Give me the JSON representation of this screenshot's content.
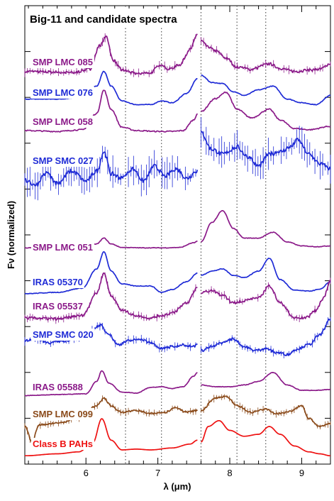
{
  "chart_data": {
    "type": "line",
    "title": "Big-11 and candidate spectra",
    "xlabel": "λ (μm)",
    "ylabel": "Fν (normalized)",
    "xlim": [
      5.15,
      9.4
    ],
    "x_ticks": [
      6,
      7,
      8,
      9
    ],
    "grid": false,
    "reference_lines_um": [
      6.55,
      7.05,
      7.6,
      8.1,
      8.5
    ],
    "gap_um": [
      7.55,
      7.6
    ],
    "colors": {
      "purple": "#8b1a89",
      "blue": "#1f2bd6",
      "brown": "#8a4a1a",
      "red": "#ee1111"
    },
    "series": [
      {
        "name": "SMP LMC 085",
        "color": "purple",
        "noise": 0.35,
        "errbars": true,
        "points": [
          [
            5.15,
            0.15
          ],
          [
            5.5,
            0.14
          ],
          [
            5.8,
            0.12
          ],
          [
            6.05,
            0.2
          ],
          [
            6.2,
            0.75
          ],
          [
            6.28,
            0.95
          ],
          [
            6.38,
            0.4
          ],
          [
            6.5,
            0.18
          ],
          [
            6.7,
            0.1
          ],
          [
            6.9,
            0.12
          ],
          [
            7.0,
            0.25
          ],
          [
            7.05,
            0.32
          ],
          [
            7.15,
            0.2
          ],
          [
            7.3,
            0.3
          ],
          [
            7.45,
            0.65
          ],
          [
            7.55,
            1.0
          ],
          [
            7.6,
            0.85
          ],
          [
            7.7,
            0.7
          ],
          [
            7.8,
            0.62
          ],
          [
            7.95,
            0.45
          ],
          [
            8.1,
            0.25
          ],
          [
            8.3,
            0.2
          ],
          [
            8.55,
            0.32
          ],
          [
            8.7,
            0.22
          ],
          [
            8.9,
            0.15
          ],
          [
            9.1,
            0.18
          ],
          [
            9.25,
            0.2
          ],
          [
            9.4,
            0.3
          ]
        ]
      },
      {
        "name": "SMP LMC 076",
        "color": "blue",
        "noise": 0.1,
        "errbars": false,
        "points": [
          [
            5.15,
            0.2
          ],
          [
            5.6,
            0.2
          ],
          [
            5.95,
            0.25
          ],
          [
            6.15,
            0.55
          ],
          [
            6.25,
            0.95
          ],
          [
            6.35,
            0.55
          ],
          [
            6.5,
            0.15
          ],
          [
            6.7,
            0.05
          ],
          [
            6.9,
            0.05
          ],
          [
            7.05,
            0.15
          ],
          [
            7.2,
            0.1
          ],
          [
            7.4,
            0.35
          ],
          [
            7.55,
            0.75
          ],
          [
            7.6,
            0.85
          ],
          [
            7.75,
            0.65
          ],
          [
            7.9,
            0.62
          ],
          [
            8.05,
            0.4
          ],
          [
            8.2,
            0.3
          ],
          [
            8.4,
            0.45
          ],
          [
            8.6,
            0.55
          ],
          [
            8.8,
            0.2
          ],
          [
            9.0,
            0.1
          ],
          [
            9.2,
            0.05
          ],
          [
            9.4,
            0.3
          ]
        ]
      },
      {
        "name": "SMP LMC 058",
        "color": "purple",
        "noise": 0.15,
        "errbars": false,
        "points": [
          [
            5.15,
            0.1
          ],
          [
            5.6,
            0.08
          ],
          [
            5.95,
            0.12
          ],
          [
            6.15,
            0.5
          ],
          [
            6.25,
            1.05
          ],
          [
            6.35,
            0.6
          ],
          [
            6.5,
            0.18
          ],
          [
            6.7,
            0.1
          ],
          [
            7.0,
            0.08
          ],
          [
            7.2,
            0.08
          ],
          [
            7.35,
            0.1
          ],
          [
            7.5,
            0.35
          ],
          [
            7.55,
            0.5
          ],
          [
            7.6,
            0.55
          ],
          [
            7.8,
            0.85
          ],
          [
            7.95,
            1.0
          ],
          [
            8.1,
            0.6
          ],
          [
            8.3,
            0.4
          ],
          [
            8.55,
            0.6
          ],
          [
            8.7,
            0.35
          ],
          [
            8.9,
            0.15
          ],
          [
            9.1,
            0.12
          ],
          [
            9.4,
            0.2
          ]
        ]
      },
      {
        "name": "SMP SMC 027",
        "color": "blue",
        "noise": 0.5,
        "errbars": true,
        "points": [
          [
            5.15,
            0.3
          ],
          [
            5.3,
            0.2
          ],
          [
            5.45,
            0.45
          ],
          [
            5.6,
            0.25
          ],
          [
            5.8,
            0.5
          ],
          [
            6.0,
            0.3
          ],
          [
            6.15,
            0.5
          ],
          [
            6.25,
            0.9
          ],
          [
            6.35,
            0.45
          ],
          [
            6.5,
            0.35
          ],
          [
            6.65,
            0.55
          ],
          [
            6.8,
            0.3
          ],
          [
            6.95,
            0.6
          ],
          [
            7.1,
            0.4
          ],
          [
            7.25,
            0.55
          ],
          [
            7.4,
            0.35
          ],
          [
            7.55,
            0.5
          ],
          [
            7.6,
            1.3
          ],
          [
            7.75,
            0.95
          ],
          [
            7.9,
            0.85
          ],
          [
            8.1,
            1.0
          ],
          [
            8.25,
            0.8
          ],
          [
            8.4,
            0.6
          ],
          [
            8.55,
            0.85
          ],
          [
            8.7,
            0.9
          ],
          [
            8.85,
            1.0
          ],
          [
            8.95,
            1.15
          ],
          [
            9.1,
            0.85
          ],
          [
            9.25,
            0.65
          ],
          [
            9.4,
            0.55
          ]
        ]
      },
      {
        "name": "SMP LMC 051",
        "color": "purple",
        "noise": 0.08,
        "errbars": false,
        "points": [
          [
            5.15,
            0.05
          ],
          [
            5.6,
            0.05
          ],
          [
            6.0,
            0.06
          ],
          [
            6.15,
            0.15
          ],
          [
            6.25,
            0.3
          ],
          [
            6.35,
            0.15
          ],
          [
            6.5,
            0.06
          ],
          [
            6.8,
            0.05
          ],
          [
            7.1,
            0.05
          ],
          [
            7.3,
            0.06
          ],
          [
            7.5,
            0.18
          ],
          [
            7.55,
            0.22
          ],
          [
            7.6,
            0.2
          ],
          [
            7.75,
            0.7
          ],
          [
            7.9,
            1.0
          ],
          [
            8.05,
            0.55
          ],
          [
            8.2,
            0.3
          ],
          [
            8.4,
            0.3
          ],
          [
            8.6,
            0.45
          ],
          [
            8.8,
            0.2
          ],
          [
            9.0,
            0.1
          ],
          [
            9.2,
            0.08
          ],
          [
            9.4,
            0.1
          ]
        ]
      },
      {
        "name": "IRAS 05370",
        "color": "blue",
        "noise": 0.08,
        "errbars": false,
        "points": [
          [
            5.15,
            0.02
          ],
          [
            5.6,
            0.05
          ],
          [
            5.95,
            0.15
          ],
          [
            6.15,
            0.6
          ],
          [
            6.25,
            1.0
          ],
          [
            6.35,
            0.55
          ],
          [
            6.5,
            0.25
          ],
          [
            6.7,
            0.2
          ],
          [
            6.9,
            0.2
          ],
          [
            7.05,
            0.05
          ],
          [
            7.2,
            0.12
          ],
          [
            7.4,
            0.3
          ],
          [
            7.55,
            0.5
          ],
          [
            7.6,
            0.45
          ],
          [
            7.75,
            0.55
          ],
          [
            7.9,
            0.6
          ],
          [
            8.05,
            0.45
          ],
          [
            8.2,
            0.4
          ],
          [
            8.4,
            0.55
          ],
          [
            8.55,
            0.85
          ],
          [
            8.7,
            0.35
          ],
          [
            8.9,
            0.1
          ],
          [
            9.1,
            0.08
          ],
          [
            9.25,
            0.12
          ],
          [
            9.4,
            0.3
          ]
        ]
      },
      {
        "name": "IRAS 05537",
        "color": "purple",
        "noise": 0.3,
        "errbars": true,
        "points": [
          [
            5.15,
            0.1
          ],
          [
            5.6,
            0.08
          ],
          [
            5.95,
            0.15
          ],
          [
            6.15,
            0.6
          ],
          [
            6.25,
            1.0
          ],
          [
            6.35,
            0.55
          ],
          [
            6.5,
            0.25
          ],
          [
            6.7,
            0.15
          ],
          [
            6.9,
            0.1
          ],
          [
            7.05,
            0.15
          ],
          [
            7.2,
            0.2
          ],
          [
            7.4,
            0.4
          ],
          [
            7.55,
            0.7
          ],
          [
            7.6,
            0.6
          ],
          [
            7.75,
            0.65
          ],
          [
            7.9,
            0.55
          ],
          [
            8.05,
            0.4
          ],
          [
            8.2,
            0.45
          ],
          [
            8.4,
            0.5
          ],
          [
            8.55,
            0.75
          ],
          [
            8.7,
            0.4
          ],
          [
            8.9,
            0.1
          ],
          [
            9.05,
            0.1
          ],
          [
            9.2,
            0.25
          ],
          [
            9.3,
            0.5
          ],
          [
            9.4,
            0.85
          ]
        ]
      },
      {
        "name": "SMP SMC 020",
        "color": "blue",
        "noise": 0.35,
        "errbars": true,
        "points": [
          [
            5.15,
            0.45
          ],
          [
            5.3,
            0.5
          ],
          [
            5.5,
            0.4
          ],
          [
            5.7,
            0.45
          ],
          [
            5.9,
            0.55
          ],
          [
            6.05,
            0.7
          ],
          [
            6.2,
            0.85
          ],
          [
            6.3,
            0.65
          ],
          [
            6.45,
            0.35
          ],
          [
            6.6,
            0.45
          ],
          [
            6.75,
            0.5
          ],
          [
            6.9,
            0.4
          ],
          [
            7.05,
            0.25
          ],
          [
            7.2,
            0.3
          ],
          [
            7.35,
            0.35
          ],
          [
            7.5,
            0.3
          ],
          [
            7.55,
            0.4
          ],
          [
            7.6,
            0.2
          ],
          [
            7.75,
            0.3
          ],
          [
            7.9,
            0.4
          ],
          [
            8.05,
            0.5
          ],
          [
            8.2,
            0.3
          ],
          [
            8.35,
            0.2
          ],
          [
            8.5,
            0.25
          ],
          [
            8.65,
            0.15
          ],
          [
            8.8,
            0.1
          ],
          [
            8.95,
            0.25
          ],
          [
            9.1,
            0.35
          ],
          [
            9.25,
            0.6
          ],
          [
            9.4,
            1.0
          ]
        ]
      },
      {
        "name": "IRAS 05588",
        "color": "purple",
        "noise": 0.08,
        "errbars": false,
        "points": [
          [
            5.15,
            0.05
          ],
          [
            5.6,
            0.08
          ],
          [
            6.0,
            0.1
          ],
          [
            6.15,
            0.45
          ],
          [
            6.22,
            0.75
          ],
          [
            6.32,
            0.4
          ],
          [
            6.5,
            0.15
          ],
          [
            6.7,
            0.12
          ],
          [
            6.9,
            0.28
          ],
          [
            7.05,
            0.3
          ],
          [
            7.2,
            0.25
          ],
          [
            7.35,
            0.3
          ],
          [
            7.5,
            0.6
          ],
          [
            7.55,
            0.7
          ],
          [
            7.6,
            0.35
          ],
          [
            7.8,
            0.3
          ],
          [
            8.0,
            0.3
          ],
          [
            8.2,
            0.35
          ],
          [
            8.4,
            0.45
          ],
          [
            8.6,
            0.7
          ],
          [
            8.8,
            0.35
          ],
          [
            9.0,
            0.2
          ],
          [
            9.2,
            0.2
          ],
          [
            9.4,
            0.22
          ]
        ]
      },
      {
        "name": "SMP LMC 099",
        "color": "brown",
        "noise": 0.3,
        "errbars": true,
        "points": [
          [
            5.15,
            0.1
          ],
          [
            5.25,
            -0.4
          ],
          [
            5.35,
            0.15
          ],
          [
            5.6,
            0.2
          ],
          [
            5.9,
            0.35
          ],
          [
            6.15,
            0.75
          ],
          [
            6.25,
            1.0
          ],
          [
            6.35,
            0.75
          ],
          [
            6.5,
            0.55
          ],
          [
            6.7,
            0.6
          ],
          [
            6.9,
            0.5
          ],
          [
            7.1,
            0.55
          ],
          [
            7.25,
            0.7
          ],
          [
            7.4,
            0.55
          ],
          [
            7.55,
            0.6
          ],
          [
            7.6,
            0.6
          ],
          [
            7.8,
            1.0
          ],
          [
            7.95,
            1.05
          ],
          [
            8.1,
            0.75
          ],
          [
            8.3,
            0.55
          ],
          [
            8.5,
            0.65
          ],
          [
            8.65,
            0.5
          ],
          [
            8.8,
            0.55
          ],
          [
            9.0,
            0.75
          ],
          [
            9.1,
            0.35
          ],
          [
            9.25,
            0.1
          ],
          [
            9.4,
            0.2
          ]
        ]
      },
      {
        "name": "Class B PAHs",
        "color": "red",
        "noise": 0.0,
        "errbars": false,
        "points": [
          [
            5.15,
            0.05
          ],
          [
            5.6,
            0.1
          ],
          [
            5.9,
            0.15
          ],
          [
            6.1,
            0.4
          ],
          [
            6.22,
            1.0
          ],
          [
            6.35,
            0.45
          ],
          [
            6.5,
            0.2
          ],
          [
            6.7,
            0.22
          ],
          [
            6.9,
            0.2
          ],
          [
            7.2,
            0.25
          ],
          [
            7.45,
            0.35
          ],
          [
            7.55,
            0.45
          ],
          [
            7.6,
            0.4
          ],
          [
            7.7,
            0.8
          ],
          [
            7.85,
            0.95
          ],
          [
            8.0,
            0.7
          ],
          [
            8.2,
            0.55
          ],
          [
            8.4,
            0.6
          ],
          [
            8.55,
            0.8
          ],
          [
            8.7,
            0.6
          ],
          [
            8.9,
            0.3
          ],
          [
            9.1,
            0.15
          ],
          [
            9.25,
            0.1
          ],
          [
            9.4,
            0.05
          ]
        ]
      }
    ]
  }
}
